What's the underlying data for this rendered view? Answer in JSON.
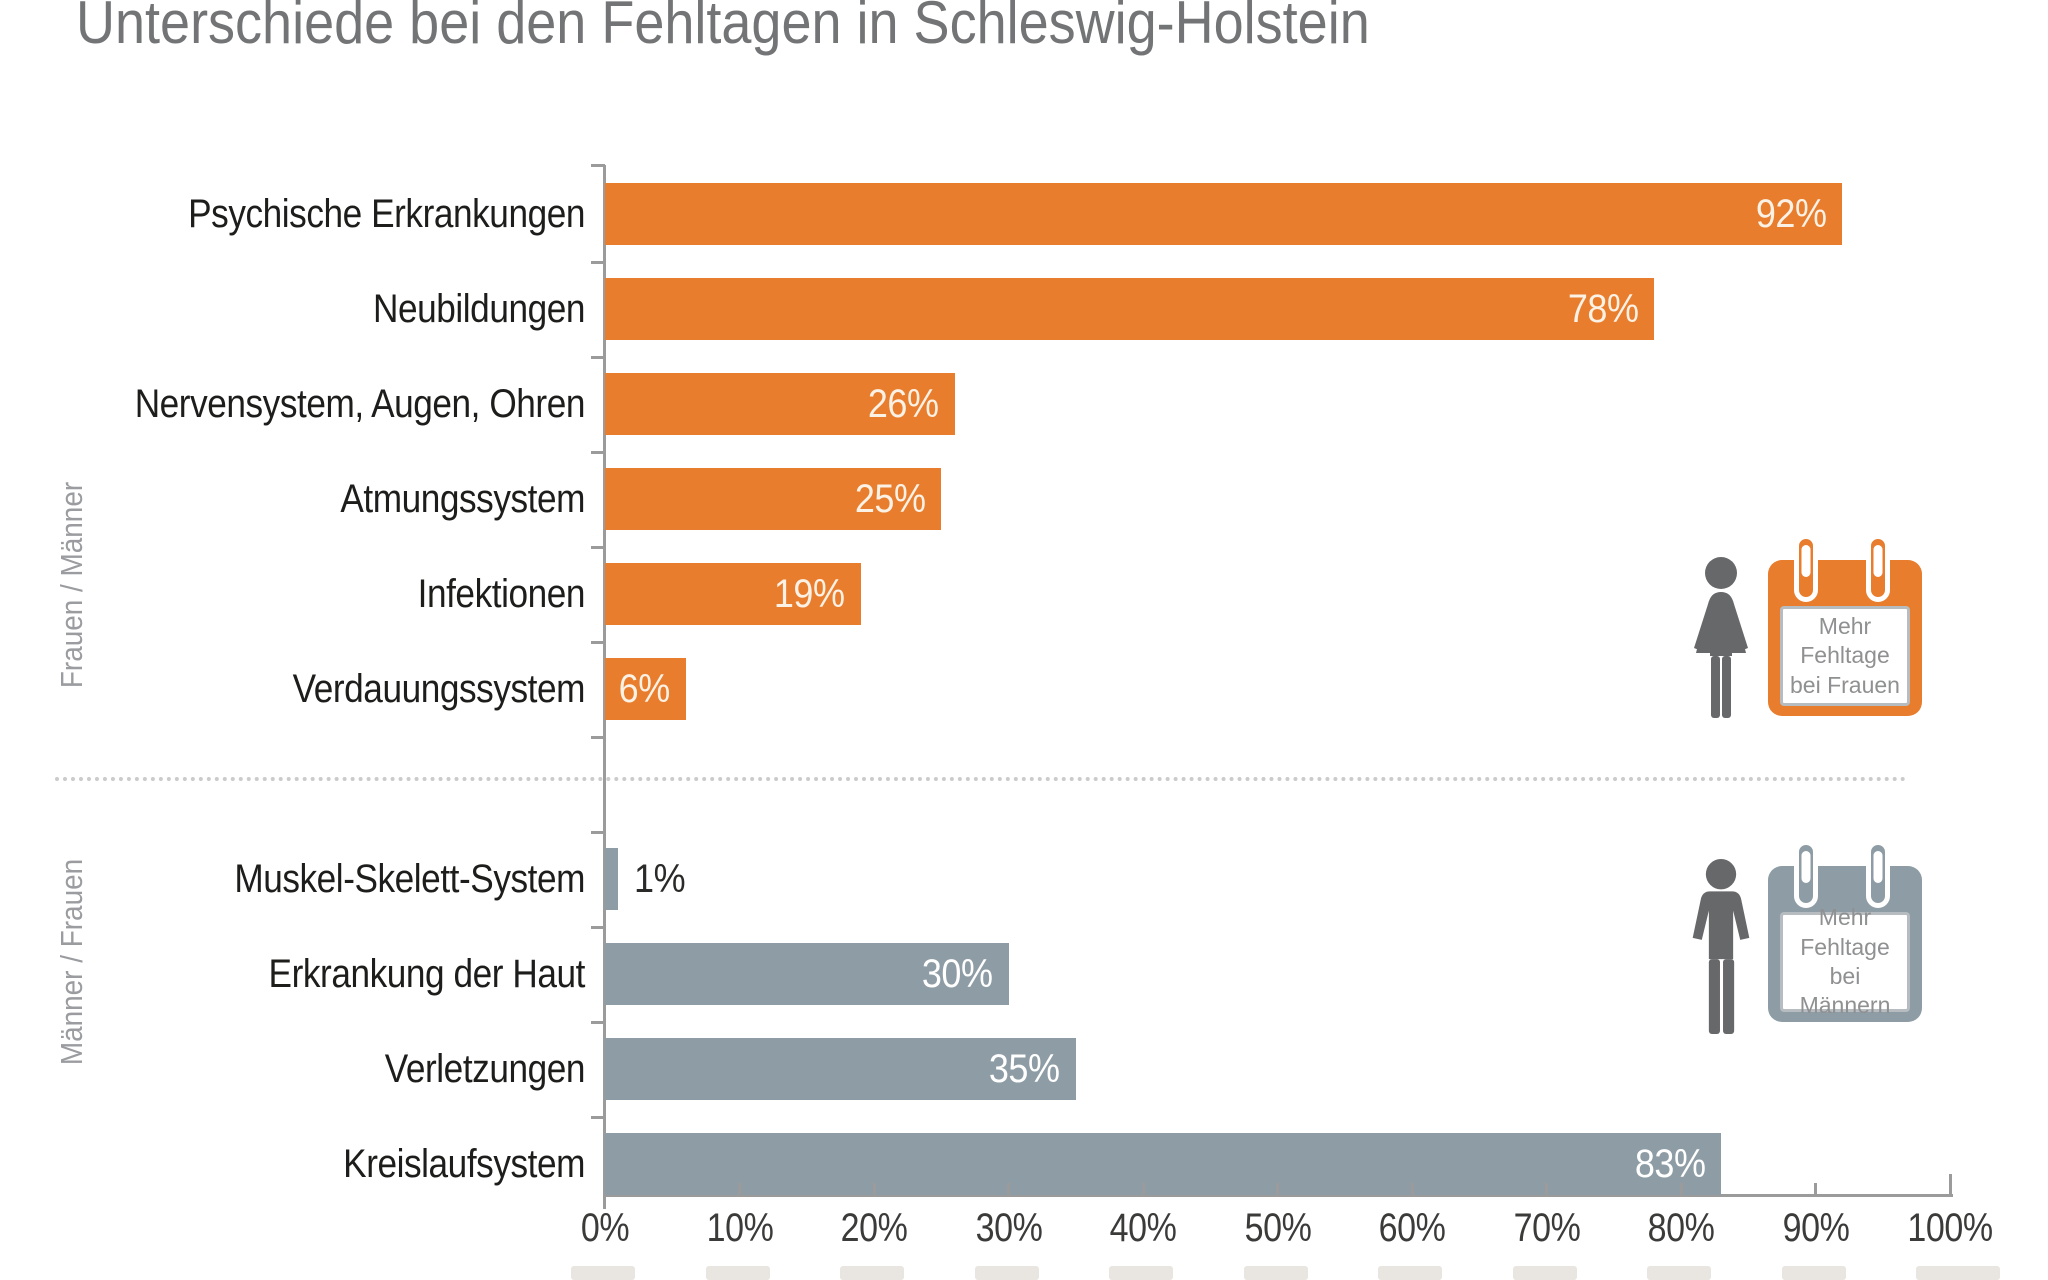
{
  "title": "Unterschiede bei den Fehltagen in Schleswig-Holstein",
  "chart_data": {
    "type": "bar",
    "orientation": "horizontal",
    "title": "Unterschiede bei den Fehltagen in Schleswig-Holstein",
    "xlabel": "",
    "ylabel": "",
    "xlim": [
      0,
      100
    ],
    "grid": false,
    "x_ticks": [
      "0%",
      "10%",
      "20%",
      "30%",
      "40%",
      "50%",
      "60%",
      "70%",
      "80%",
      "90%",
      "100%"
    ],
    "value_suffix": "%",
    "groups": [
      {
        "label": "Frauen / Männer",
        "color": "#e87d2e",
        "categories": [
          "Psychische Erkrankungen",
          "Neubildungen",
          "Nervensystem, Augen, Ohren",
          "Atmungssystem",
          "Infektionen",
          "Verdauungssystem"
        ],
        "values": [
          92,
          78,
          26,
          25,
          19,
          6
        ]
      },
      {
        "label": "Männer / Frauen",
        "color": "#8e9da5",
        "categories": [
          "Muskel-Skelett-System",
          "Erkrankung der Haut",
          "Verletzungen",
          "Kreislaufsystem"
        ],
        "values": [
          1,
          30,
          35,
          83
        ]
      }
    ],
    "annotations": [
      {
        "icon": "woman",
        "color": "#e87d2e",
        "lines": [
          "Mehr",
          "Fehltage",
          "bei Frauen"
        ]
      },
      {
        "icon": "man",
        "color": "#8e9da5",
        "lines": [
          "Mehr",
          "Fehltage",
          "bei Männern"
        ]
      }
    ]
  },
  "colors": {
    "bar_orange": "#e87d2e",
    "bar_gray": "#8e9da5",
    "axis": "#9b9b9b",
    "title_text": "#737476",
    "category_text": "#1d1d1b",
    "value_text_light": "#fbf1e4",
    "value_text_white": "#ffffff",
    "value_text_dark": "#2a2a29",
    "group_label_text": "#9b9ca0",
    "figure": "#67686a",
    "badge_text": "#8f9091"
  }
}
